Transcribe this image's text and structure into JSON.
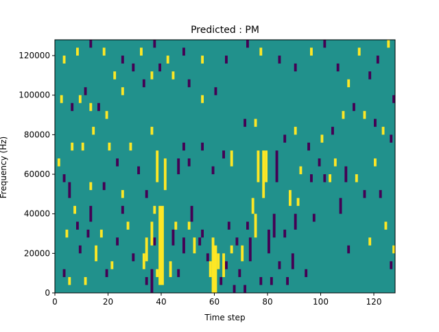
{
  "chart_data": {
    "type": "heatmap",
    "title": "Predicted : PM",
    "xlabel": "Time step",
    "ylabel": "Frequency (Hz)",
    "xlim": [
      0,
      128
    ],
    "ylim": [
      0,
      128000
    ],
    "x_ticks": [
      0,
      20,
      40,
      60,
      80,
      100,
      120
    ],
    "y_ticks": [
      0,
      20000,
      40000,
      60000,
      80000,
      100000,
      120000
    ],
    "x_tick_labels": [
      "0",
      "20",
      "40",
      "60",
      "80",
      "100",
      "120"
    ],
    "y_tick_labels": [
      "0",
      "20000",
      "40000",
      "60000",
      "80000",
      "100000",
      "120000"
    ],
    "grid": false,
    "colormap": {
      "low": "#440154",
      "mid": "#21918c",
      "high": "#fde725"
    },
    "background_value": "mid",
    "cell_height_hz": 4000,
    "cells": [
      {
        "x": 33,
        "y": 12000,
        "h": 8000,
        "v": "high"
      },
      {
        "x": 34,
        "y": 4000,
        "h": 4000,
        "v": "low"
      },
      {
        "x": 36,
        "y": 0,
        "h": 12000,
        "v": "low"
      },
      {
        "x": 37,
        "y": 24000,
        "h": 4000,
        "v": "low"
      },
      {
        "x": 38,
        "y": 8000,
        "h": 4000,
        "v": "high"
      },
      {
        "x": 39,
        "y": 4000,
        "h": 40000,
        "v": "high"
      },
      {
        "x": 40,
        "y": 4000,
        "h": 40000,
        "v": "high"
      },
      {
        "x": 41,
        "y": 52000,
        "h": 16000,
        "v": "high"
      },
      {
        "x": 38,
        "y": 56000,
        "h": 16000,
        "v": "high"
      },
      {
        "x": 36,
        "y": 24000,
        "h": 12000,
        "v": "high"
      },
      {
        "x": 34,
        "y": 16000,
        "h": 12000,
        "v": "high"
      },
      {
        "x": 37,
        "y": 40000,
        "h": 4000,
        "v": "high"
      },
      {
        "x": 43,
        "y": 8000,
        "h": 8000,
        "v": "high"
      },
      {
        "x": 44,
        "y": 24000,
        "h": 8000,
        "v": "low"
      },
      {
        "x": 45,
        "y": 32000,
        "h": 4000,
        "v": "high"
      },
      {
        "x": 46,
        "y": 8000,
        "h": 4000,
        "v": "low"
      },
      {
        "x": 48,
        "y": 20000,
        "h": 8000,
        "v": "low"
      },
      {
        "x": 50,
        "y": 32000,
        "h": 4000,
        "v": "high"
      },
      {
        "x": 51,
        "y": 36000,
        "h": 8000,
        "v": "low"
      },
      {
        "x": 52,
        "y": 20000,
        "h": 8000,
        "v": "high"
      },
      {
        "x": 54,
        "y": 24000,
        "h": 4000,
        "v": "low"
      },
      {
        "x": 55,
        "y": 28000,
        "h": 4000,
        "v": "low"
      },
      {
        "x": 57,
        "y": 16000,
        "h": 4000,
        "v": "low"
      },
      {
        "x": 58,
        "y": 8000,
        "h": 8000,
        "v": "high"
      },
      {
        "x": 59,
        "y": 0,
        "h": 28000,
        "v": "high"
      },
      {
        "x": 60,
        "y": 0,
        "h": 24000,
        "v": "high"
      },
      {
        "x": 61,
        "y": 12000,
        "h": 8000,
        "v": "high"
      },
      {
        "x": 62,
        "y": 4000,
        "h": 4000,
        "v": "low"
      },
      {
        "x": 63,
        "y": 8000,
        "h": 12000,
        "v": "high"
      },
      {
        "x": 64,
        "y": 12000,
        "h": 4000,
        "v": "low"
      },
      {
        "x": 65,
        "y": 32000,
        "h": 4000,
        "v": "low"
      },
      {
        "x": 66,
        "y": 20000,
        "h": 4000,
        "v": "high"
      },
      {
        "x": 67,
        "y": 0,
        "h": 4000,
        "v": "low"
      },
      {
        "x": 68,
        "y": 24000,
        "h": 4000,
        "v": "low"
      },
      {
        "x": 69,
        "y": 8000,
        "h": 4000,
        "v": "low"
      },
      {
        "x": 70,
        "y": 16000,
        "h": 8000,
        "v": "high"
      },
      {
        "x": 71,
        "y": 0,
        "h": 4000,
        "v": "low"
      },
      {
        "x": 72,
        "y": 32000,
        "h": 4000,
        "v": "low"
      },
      {
        "x": 73,
        "y": 16000,
        "h": 12000,
        "v": "low"
      },
      {
        "x": 74,
        "y": 40000,
        "h": 8000,
        "v": "high"
      },
      {
        "x": 75,
        "y": 28000,
        "h": 12000,
        "v": "high"
      },
      {
        "x": 76,
        "y": 56000,
        "h": 16000,
        "v": "high"
      },
      {
        "x": 77,
        "y": 4000,
        "h": 4000,
        "v": "low"
      },
      {
        "x": 78,
        "y": 48000,
        "h": 24000,
        "v": "high"
      },
      {
        "x": 79,
        "y": 56000,
        "h": 16000,
        "v": "high"
      },
      {
        "x": 80,
        "y": 20000,
        "h": 12000,
        "v": "low"
      },
      {
        "x": 81,
        "y": 4000,
        "h": 4000,
        "v": "low"
      },
      {
        "x": 82,
        "y": 28000,
        "h": 12000,
        "v": "low"
      },
      {
        "x": 83,
        "y": 56000,
        "h": 16000,
        "v": "low"
      },
      {
        "x": 84,
        "y": 12000,
        "h": 4000,
        "v": "low"
      },
      {
        "x": 86,
        "y": 28000,
        "h": 4000,
        "v": "low"
      },
      {
        "x": 87,
        "y": 4000,
        "h": 4000,
        "v": "low"
      },
      {
        "x": 88,
        "y": 44000,
        "h": 8000,
        "v": "high"
      },
      {
        "x": 89,
        "y": 12000,
        "h": 8000,
        "v": "low"
      },
      {
        "x": 90,
        "y": 32000,
        "h": 8000,
        "v": "low"
      },
      {
        "x": 91,
        "y": 44000,
        "h": 4000,
        "v": "high"
      },
      {
        "x": 92,
        "y": 60000,
        "h": 4000,
        "v": "high"
      },
      {
        "x": 94,
        "y": 8000,
        "h": 4000,
        "v": "low"
      },
      {
        "x": 96,
        "y": 56000,
        "h": 4000,
        "v": "low"
      },
      {
        "x": 97,
        "y": 36000,
        "h": 4000,
        "v": "low"
      },
      {
        "x": 99,
        "y": 64000,
        "h": 4000,
        "v": "low"
      },
      {
        "x": 101,
        "y": 56000,
        "h": 4000,
        "v": "low"
      },
      {
        "x": 103,
        "y": 56000,
        "h": 4000,
        "v": "high"
      },
      {
        "x": 105,
        "y": 64000,
        "h": 4000,
        "v": "high"
      },
      {
        "x": 107,
        "y": 40000,
        "h": 8000,
        "v": "low"
      },
      {
        "x": 109,
        "y": 56000,
        "h": 8000,
        "v": "low"
      },
      {
        "x": 110,
        "y": 20000,
        "h": 4000,
        "v": "low"
      },
      {
        "x": 113,
        "y": 56000,
        "h": 4000,
        "v": "high"
      },
      {
        "x": 116,
        "y": 48000,
        "h": 4000,
        "v": "low"
      },
      {
        "x": 118,
        "y": 24000,
        "h": 4000,
        "v": "high"
      },
      {
        "x": 120,
        "y": 64000,
        "h": 4000,
        "v": "high"
      },
      {
        "x": 122,
        "y": 48000,
        "h": 4000,
        "v": "low"
      },
      {
        "x": 124,
        "y": 32000,
        "h": 4000,
        "v": "high"
      },
      {
        "x": 126,
        "y": 12000,
        "h": 4000,
        "v": "low"
      },
      {
        "x": 127,
        "y": 20000,
        "h": 4000,
        "v": "high"
      },
      {
        "x": 3,
        "y": 8000,
        "h": 4000,
        "v": "low"
      },
      {
        "x": 4,
        "y": 28000,
        "h": 4000,
        "v": "high"
      },
      {
        "x": 5,
        "y": 4000,
        "h": 4000,
        "v": "high"
      },
      {
        "x": 7,
        "y": 40000,
        "h": 4000,
        "v": "high"
      },
      {
        "x": 8,
        "y": 32000,
        "h": 4000,
        "v": "low"
      },
      {
        "x": 9,
        "y": 20000,
        "h": 4000,
        "v": "low"
      },
      {
        "x": 11,
        "y": 4000,
        "h": 4000,
        "v": "high"
      },
      {
        "x": 12,
        "y": 28000,
        "h": 4000,
        "v": "low"
      },
      {
        "x": 13,
        "y": 36000,
        "h": 8000,
        "v": "low"
      },
      {
        "x": 15,
        "y": 16000,
        "h": 8000,
        "v": "high"
      },
      {
        "x": 17,
        "y": 28000,
        "h": 4000,
        "v": "high"
      },
      {
        "x": 19,
        "y": 8000,
        "h": 4000,
        "v": "low"
      },
      {
        "x": 21,
        "y": 12000,
        "h": 4000,
        "v": "high"
      },
      {
        "x": 23,
        "y": 24000,
        "h": 4000,
        "v": "low"
      },
      {
        "x": 25,
        "y": 40000,
        "h": 4000,
        "v": "low"
      },
      {
        "x": 27,
        "y": 32000,
        "h": 4000,
        "v": "high"
      },
      {
        "x": 29,
        "y": 16000,
        "h": 4000,
        "v": "low"
      },
      {
        "x": 1,
        "y": 64000,
        "h": 4000,
        "v": "high"
      },
      {
        "x": 3,
        "y": 56000,
        "h": 4000,
        "v": "low"
      },
      {
        "x": 5,
        "y": 48000,
        "h": 8000,
        "v": "low"
      },
      {
        "x": 6,
        "y": 72000,
        "h": 4000,
        "v": "high"
      },
      {
        "x": 10,
        "y": 72000,
        "h": 4000,
        "v": "high"
      },
      {
        "x": 13,
        "y": 52000,
        "h": 4000,
        "v": "high"
      },
      {
        "x": 14,
        "y": 80000,
        "h": 4000,
        "v": "high"
      },
      {
        "x": 18,
        "y": 52000,
        "h": 4000,
        "v": "low"
      },
      {
        "x": 20,
        "y": 72000,
        "h": 4000,
        "v": "high"
      },
      {
        "x": 23,
        "y": 64000,
        "h": 4000,
        "v": "low"
      },
      {
        "x": 25,
        "y": 48000,
        "h": 4000,
        "v": "high"
      },
      {
        "x": 28,
        "y": 72000,
        "h": 4000,
        "v": "high"
      },
      {
        "x": 31,
        "y": 60000,
        "h": 4000,
        "v": "low"
      },
      {
        "x": 34,
        "y": 48000,
        "h": 4000,
        "v": "low"
      },
      {
        "x": 36,
        "y": 80000,
        "h": 4000,
        "v": "high"
      },
      {
        "x": 46,
        "y": 60000,
        "h": 8000,
        "v": "low"
      },
      {
        "x": 48,
        "y": 72000,
        "h": 4000,
        "v": "low"
      },
      {
        "x": 50,
        "y": 64000,
        "h": 4000,
        "v": "low"
      },
      {
        "x": 55,
        "y": 72000,
        "h": 4000,
        "v": "low"
      },
      {
        "x": 59,
        "y": 60000,
        "h": 4000,
        "v": "low"
      },
      {
        "x": 63,
        "y": 68000,
        "h": 4000,
        "v": "low"
      },
      {
        "x": 66,
        "y": 64000,
        "h": 8000,
        "v": "high"
      },
      {
        "x": 71,
        "y": 84000,
        "h": 4000,
        "v": "low"
      },
      {
        "x": 75,
        "y": 84000,
        "h": 4000,
        "v": "high"
      },
      {
        "x": 2,
        "y": 96000,
        "h": 4000,
        "v": "high"
      },
      {
        "x": 6,
        "y": 92000,
        "h": 4000,
        "v": "low"
      },
      {
        "x": 9,
        "y": 96000,
        "h": 4000,
        "v": "high"
      },
      {
        "x": 11,
        "y": 100000,
        "h": 4000,
        "v": "low"
      },
      {
        "x": 13,
        "y": 92000,
        "h": 4000,
        "v": "high"
      },
      {
        "x": 16,
        "y": 92000,
        "h": 4000,
        "v": "low"
      },
      {
        "x": 19,
        "y": 88000,
        "h": 4000,
        "v": "high"
      },
      {
        "x": 22,
        "y": 108000,
        "h": 4000,
        "v": "high"
      },
      {
        "x": 25,
        "y": 100000,
        "h": 4000,
        "v": "high"
      },
      {
        "x": 29,
        "y": 112000,
        "h": 4000,
        "v": "low"
      },
      {
        "x": 33,
        "y": 104000,
        "h": 4000,
        "v": "low"
      },
      {
        "x": 36,
        "y": 108000,
        "h": 4000,
        "v": "high"
      },
      {
        "x": 39,
        "y": 112000,
        "h": 4000,
        "v": "low"
      },
      {
        "x": 44,
        "y": 108000,
        "h": 4000,
        "v": "high"
      },
      {
        "x": 50,
        "y": 104000,
        "h": 4000,
        "v": "low"
      },
      {
        "x": 55,
        "y": 96000,
        "h": 4000,
        "v": "high"
      },
      {
        "x": 60,
        "y": 100000,
        "h": 4000,
        "v": "low"
      },
      {
        "x": 3,
        "y": 116000,
        "h": 4000,
        "v": "high"
      },
      {
        "x": 8,
        "y": 120000,
        "h": 4000,
        "v": "high"
      },
      {
        "x": 13,
        "y": 124000,
        "h": 4000,
        "v": "low"
      },
      {
        "x": 18,
        "y": 120000,
        "h": 4000,
        "v": "high"
      },
      {
        "x": 25,
        "y": 116000,
        "h": 4000,
        "v": "low"
      },
      {
        "x": 32,
        "y": 120000,
        "h": 4000,
        "v": "high"
      },
      {
        "x": 37,
        "y": 124000,
        "h": 4000,
        "v": "low"
      },
      {
        "x": 42,
        "y": 116000,
        "h": 4000,
        "v": "high"
      },
      {
        "x": 48,
        "y": 120000,
        "h": 4000,
        "v": "low"
      },
      {
        "x": 55,
        "y": 116000,
        "h": 4000,
        "v": "high"
      },
      {
        "x": 64,
        "y": 116000,
        "h": 4000,
        "v": "low"
      },
      {
        "x": 72,
        "y": 124000,
        "h": 4000,
        "v": "low"
      },
      {
        "x": 77,
        "y": 120000,
        "h": 4000,
        "v": "high"
      },
      {
        "x": 84,
        "y": 116000,
        "h": 4000,
        "v": "low"
      },
      {
        "x": 90,
        "y": 112000,
        "h": 4000,
        "v": "low"
      },
      {
        "x": 96,
        "y": 120000,
        "h": 4000,
        "v": "high"
      },
      {
        "x": 101,
        "y": 124000,
        "h": 4000,
        "v": "low"
      },
      {
        "x": 106,
        "y": 112000,
        "h": 4000,
        "v": "low"
      },
      {
        "x": 110,
        "y": 104000,
        "h": 4000,
        "v": "high"
      },
      {
        "x": 114,
        "y": 120000,
        "h": 4000,
        "v": "high"
      },
      {
        "x": 118,
        "y": 108000,
        "h": 4000,
        "v": "low"
      },
      {
        "x": 121,
        "y": 116000,
        "h": 4000,
        "v": "low"
      },
      {
        "x": 125,
        "y": 124000,
        "h": 4000,
        "v": "high"
      },
      {
        "x": 127,
        "y": 96000,
        "h": 4000,
        "v": "low"
      },
      {
        "x": 108,
        "y": 88000,
        "h": 4000,
        "v": "high"
      },
      {
        "x": 112,
        "y": 92000,
        "h": 4000,
        "v": "low"
      },
      {
        "x": 116,
        "y": 88000,
        "h": 4000,
        "v": "high"
      },
      {
        "x": 120,
        "y": 84000,
        "h": 4000,
        "v": "low"
      },
      {
        "x": 123,
        "y": 80000,
        "h": 4000,
        "v": "high"
      },
      {
        "x": 126,
        "y": 76000,
        "h": 4000,
        "v": "low"
      },
      {
        "x": 104,
        "y": 80000,
        "h": 4000,
        "v": "low"
      },
      {
        "x": 100,
        "y": 76000,
        "h": 4000,
        "v": "high"
      },
      {
        "x": 95,
        "y": 72000,
        "h": 4000,
        "v": "low"
      },
      {
        "x": 90,
        "y": 80000,
        "h": 4000,
        "v": "high"
      },
      {
        "x": 86,
        "y": 76000,
        "h": 4000,
        "v": "low"
      }
    ]
  }
}
